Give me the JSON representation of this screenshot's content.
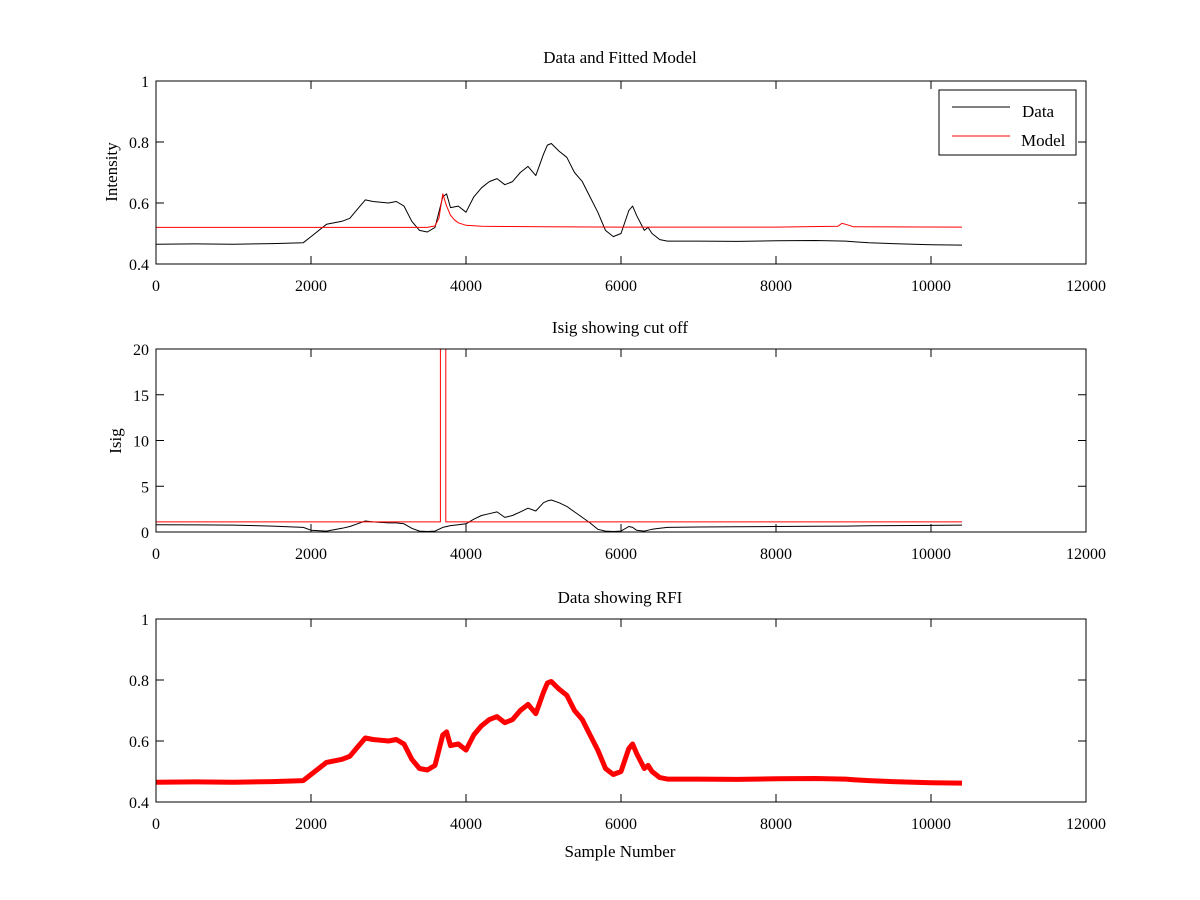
{
  "chart_data": [
    {
      "type": "line",
      "title": "Data and Fitted Model",
      "xlabel": "",
      "ylabel": "Intensity",
      "xlim": [
        0,
        12000
      ],
      "ylim": [
        0.4,
        1
      ],
      "xticks": [
        0,
        2000,
        4000,
        6000,
        8000,
        10000,
        12000
      ],
      "xtick_labels": [
        "0",
        "2000",
        "4000",
        "6000",
        "8000",
        "10000",
        "12000"
      ],
      "yticks": [
        0.4,
        0.6,
        0.8,
        1
      ],
      "ytick_labels": [
        "0.4",
        "0.6",
        "0.8",
        "1"
      ],
      "legend": {
        "position": "top-right",
        "entries": [
          "Data",
          "Model"
        ]
      },
      "grid": false,
      "series": [
        {
          "name": "Data",
          "color": "#000000",
          "x": [
            0,
            500,
            1000,
            1500,
            1900,
            2000,
            2200,
            2400,
            2500,
            2600,
            2700,
            2800,
            3000,
            3100,
            3200,
            3300,
            3400,
            3500,
            3600,
            3700,
            3750,
            3800,
            3900,
            4000,
            4100,
            4200,
            4300,
            4400,
            4500,
            4600,
            4700,
            4800,
            4900,
            5000,
            5050,
            5100,
            5200,
            5300,
            5400,
            5500,
            5600,
            5700,
            5800,
            5900,
            6000,
            6100,
            6150,
            6200,
            6300,
            6350,
            6400,
            6500,
            6600,
            7000,
            7500,
            8000,
            8500,
            8900,
            9000,
            9200,
            9500,
            10000,
            10400
          ],
          "y": [
            0.465,
            0.466,
            0.465,
            0.467,
            0.47,
            0.49,
            0.53,
            0.54,
            0.55,
            0.58,
            0.61,
            0.605,
            0.6,
            0.605,
            0.59,
            0.54,
            0.51,
            0.505,
            0.52,
            0.62,
            0.63,
            0.585,
            0.59,
            0.57,
            0.62,
            0.65,
            0.67,
            0.68,
            0.66,
            0.67,
            0.7,
            0.72,
            0.69,
            0.76,
            0.79,
            0.795,
            0.77,
            0.75,
            0.7,
            0.67,
            0.62,
            0.57,
            0.51,
            0.49,
            0.5,
            0.575,
            0.59,
            0.56,
            0.51,
            0.52,
            0.5,
            0.48,
            0.475,
            0.475,
            0.474,
            0.476,
            0.477,
            0.475,
            0.473,
            0.47,
            0.467,
            0.463,
            0.462
          ]
        },
        {
          "name": "Model",
          "color": "#ff0000",
          "x": [
            0,
            3500,
            3600,
            3650,
            3700,
            3750,
            3800,
            3850,
            3900,
            4000,
            4200,
            4500,
            5000,
            6000,
            7000,
            8000,
            8800,
            8850,
            8900,
            9000,
            10400
          ],
          "y": [
            0.52,
            0.52,
            0.525,
            0.55,
            0.63,
            0.59,
            0.56,
            0.545,
            0.535,
            0.527,
            0.524,
            0.523,
            0.522,
            0.521,
            0.521,
            0.521,
            0.524,
            0.533,
            0.53,
            0.522,
            0.521
          ]
        }
      ]
    },
    {
      "type": "line",
      "title": "Isig showing cut off",
      "xlabel": "",
      "ylabel": "Isig",
      "xlim": [
        0,
        12000
      ],
      "ylim": [
        0,
        20
      ],
      "xticks": [
        0,
        2000,
        4000,
        6000,
        8000,
        10000,
        12000
      ],
      "xtick_labels": [
        "0",
        "2000",
        "4000",
        "6000",
        "8000",
        "10000",
        "12000"
      ],
      "yticks": [
        0,
        5,
        10,
        15,
        20
      ],
      "ytick_labels": [
        "0",
        "5",
        "10",
        "15",
        "20"
      ],
      "grid": false,
      "series": [
        {
          "color": "#000000",
          "x": [
            0,
            500,
            1000,
            1500,
            1900,
            2000,
            2200,
            2400,
            2500,
            2600,
            2700,
            2800,
            3000,
            3100,
            3200,
            3300,
            3400,
            3500,
            3600,
            3700,
            3750,
            3800,
            3900,
            4000,
            4100,
            4200,
            4300,
            4400,
            4500,
            4600,
            4700,
            4800,
            4900,
            5000,
            5050,
            5100,
            5200,
            5300,
            5400,
            5500,
            5600,
            5700,
            5800,
            5900,
            6000,
            6100,
            6150,
            6200,
            6300,
            6350,
            6400,
            6500,
            6600,
            7000,
            7500,
            8000,
            8500,
            8900,
            9000,
            9200,
            9500,
            10000,
            10400
          ],
          "y": [
            0.8,
            0.78,
            0.75,
            0.65,
            0.5,
            0.2,
            0.1,
            0.4,
            0.6,
            0.9,
            1.2,
            1.1,
            1.0,
            1.0,
            0.9,
            0.4,
            0.1,
            0.05,
            0.1,
            0.5,
            0.6,
            0.7,
            0.8,
            0.9,
            1.4,
            1.8,
            2.0,
            2.2,
            1.6,
            1.8,
            2.2,
            2.6,
            2.3,
            3.2,
            3.4,
            3.5,
            3.2,
            2.8,
            2.2,
            1.6,
            1.0,
            0.3,
            0.1,
            0.05,
            0.1,
            0.6,
            0.5,
            0.2,
            0.1,
            0.2,
            0.3,
            0.4,
            0.5,
            0.55,
            0.58,
            0.6,
            0.62,
            0.64,
            0.66,
            0.68,
            0.7,
            0.72,
            0.75
          ]
        },
        {
          "color": "#ff0000",
          "x": [
            0,
            3670,
            3670,
            3740,
            3740,
            10400
          ],
          "y": [
            1.1,
            1.1,
            20,
            20,
            1.1,
            1.1
          ]
        }
      ]
    },
    {
      "type": "line",
      "title": "Data showing RFI",
      "xlabel": "Sample Number",
      "ylabel": "",
      "xlim": [
        0,
        12000
      ],
      "ylim": [
        0.4,
        1
      ],
      "xticks": [
        0,
        2000,
        4000,
        6000,
        8000,
        10000,
        12000
      ],
      "xtick_labels": [
        "0",
        "2000",
        "4000",
        "6000",
        "8000",
        "10000",
        "12000"
      ],
      "yticks": [
        0.4,
        0.6,
        0.8,
        1
      ],
      "ytick_labels": [
        "0.4",
        "0.6",
        "0.8",
        "1"
      ],
      "grid": false,
      "series": [
        {
          "color": "#ff0000",
          "x": [
            0,
            500,
            1000,
            1500,
            1900,
            2000,
            2200,
            2400,
            2500,
            2600,
            2700,
            2800,
            3000,
            3100,
            3200,
            3300,
            3400,
            3500,
            3600,
            3700,
            3750,
            3800,
            3900,
            4000,
            4100,
            4200,
            4300,
            4400,
            4500,
            4600,
            4700,
            4800,
            4900,
            5000,
            5050,
            5100,
            5200,
            5300,
            5400,
            5500,
            5600,
            5700,
            5800,
            5900,
            6000,
            6100,
            6150,
            6200,
            6300,
            6350,
            6400,
            6500,
            6600,
            7000,
            7500,
            8000,
            8500,
            8900,
            9000,
            9200,
            9500,
            10000,
            10400
          ],
          "y": [
            0.465,
            0.466,
            0.465,
            0.467,
            0.47,
            0.49,
            0.53,
            0.54,
            0.55,
            0.58,
            0.61,
            0.605,
            0.6,
            0.605,
            0.59,
            0.54,
            0.51,
            0.505,
            0.52,
            0.62,
            0.63,
            0.585,
            0.59,
            0.57,
            0.62,
            0.65,
            0.67,
            0.68,
            0.66,
            0.67,
            0.7,
            0.72,
            0.69,
            0.76,
            0.79,
            0.795,
            0.77,
            0.75,
            0.7,
            0.67,
            0.62,
            0.57,
            0.51,
            0.49,
            0.5,
            0.575,
            0.59,
            0.56,
            0.51,
            0.52,
            0.5,
            0.48,
            0.475,
            0.475,
            0.474,
            0.476,
            0.477,
            0.475,
            0.473,
            0.47,
            0.467,
            0.463,
            0.462
          ]
        }
      ]
    }
  ]
}
